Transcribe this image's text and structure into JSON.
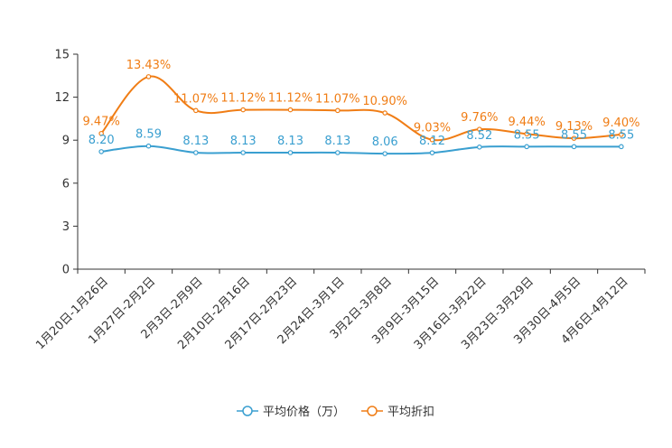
{
  "chart_data": {
    "type": "line",
    "categories": [
      "1月20日-1月26日",
      "1月27日-2月2日",
      "2月3日-2月9日",
      "2月10日-2月16日",
      "2月17日-2月23日",
      "2月24日-3月1日",
      "3月2日-3月8日",
      "3月9日-3月15日",
      "3月16日-3月22日",
      "3月23日-3月29日",
      "3月30日-4月5日",
      "4月6日-4月12日"
    ],
    "ylim": [
      0,
      15
    ],
    "yticks": [
      0,
      3,
      6,
      9,
      12,
      15
    ],
    "series": [
      {
        "name": "平均价格（万）",
        "color": "#3a9fd0",
        "values": [
          8.2,
          8.59,
          8.13,
          8.13,
          8.13,
          8.13,
          8.06,
          8.12,
          8.52,
          8.55,
          8.55,
          8.55
        ],
        "labels": [
          "8.20",
          "8.59",
          "8.13",
          "8.13",
          "8.13",
          "8.13",
          "8.06",
          "8.12",
          "8.52",
          "8.55",
          "8.55",
          "8.55"
        ]
      },
      {
        "name": "平均折扣",
        "color": "#f07d15",
        "values": [
          9.47,
          13.43,
          11.07,
          11.12,
          11.12,
          11.07,
          10.9,
          9.03,
          9.76,
          9.44,
          9.13,
          9.4
        ],
        "labels": [
          "9.47%",
          "13.43%",
          "11.07%",
          "11.12%",
          "11.12%",
          "11.07%",
          "10.90%",
          "9.03%",
          "9.76%",
          "9.44%",
          "9.13%",
          "9.40%"
        ]
      }
    ],
    "grid": false,
    "legend_position": "bottom"
  }
}
